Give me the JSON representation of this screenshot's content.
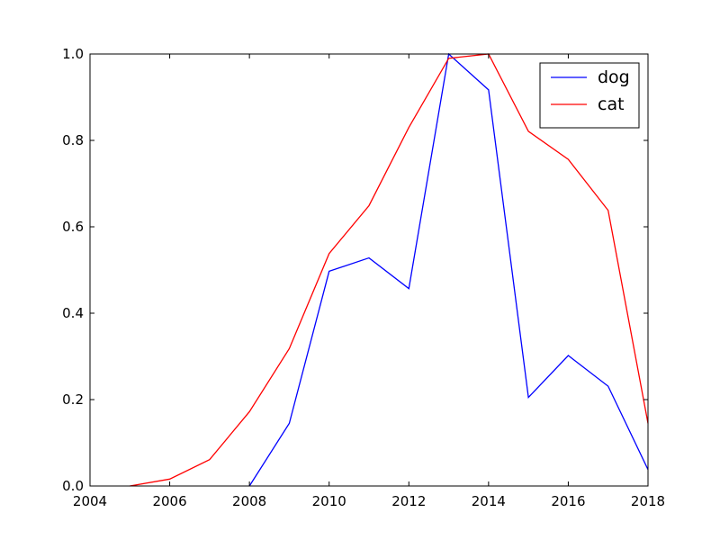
{
  "chart_data": {
    "type": "line",
    "title": "",
    "xlabel": "",
    "ylabel": "",
    "xlim": [
      2004,
      2018
    ],
    "ylim": [
      0.0,
      1.0
    ],
    "x_ticks": [
      2004,
      2006,
      2008,
      2010,
      2012,
      2014,
      2016,
      2018
    ],
    "x_tick_labels": [
      "2004",
      "2006",
      "2008",
      "2010",
      "2012",
      "2014",
      "2016",
      "2018"
    ],
    "y_ticks": [
      0.0,
      0.2,
      0.4,
      0.6,
      0.8,
      1.0
    ],
    "y_tick_labels": [
      "0.0",
      "0.2",
      "0.4",
      "0.6",
      "0.8",
      "1.0"
    ],
    "grid": false,
    "legend_position": "top-right",
    "series": [
      {
        "name": "dog",
        "color": "#0000ff",
        "x": [
          2008,
          2009,
          2010,
          2011,
          2012,
          2013,
          2014,
          2015,
          2016,
          2017,
          2018
        ],
        "values": [
          0.0,
          0.145,
          0.497,
          0.528,
          0.457,
          1.0,
          0.917,
          0.205,
          0.302,
          0.231,
          0.038
        ]
      },
      {
        "name": "cat",
        "color": "#ff0000",
        "x": [
          2005,
          2006,
          2007,
          2008,
          2009,
          2010,
          2011,
          2012,
          2013,
          2014,
          2015,
          2016,
          2017,
          2018
        ],
        "values": [
          0.0,
          0.016,
          0.061,
          0.172,
          0.318,
          0.538,
          0.649,
          0.83,
          0.99,
          1.0,
          0.821,
          0.756,
          0.638,
          0.145
        ]
      }
    ]
  }
}
